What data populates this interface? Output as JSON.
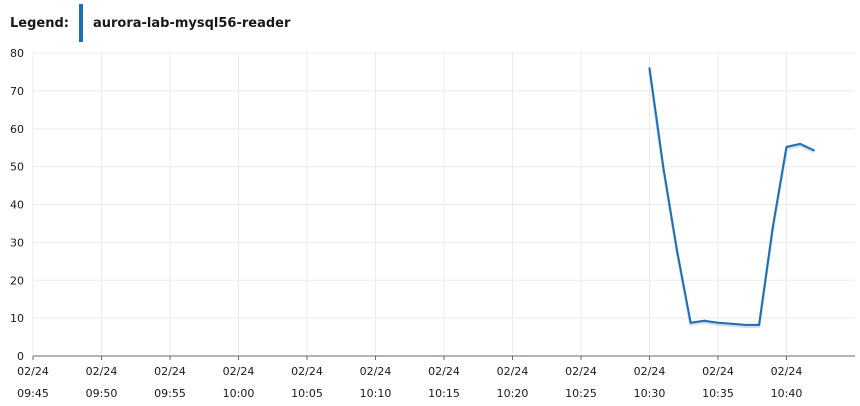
{
  "legend": {
    "title": "Legend:",
    "items": [
      {
        "label": "aurora-lab-mysql56-reader",
        "color": "#1f6fb0"
      }
    ]
  },
  "colors": {
    "grid": "#e9ebed",
    "axis": "#5f6b7a",
    "series": "#1f6fb0",
    "text": "#16191f"
  },
  "chart_data": {
    "type": "line",
    "title": "",
    "xlabel": "",
    "ylabel": "",
    "ylim": [
      0,
      80
    ],
    "y_ticks": [
      0,
      10,
      20,
      30,
      40,
      50,
      60,
      70,
      80
    ],
    "grid": true,
    "legend_position": "top-left",
    "x_ticks": [
      {
        "date": "02/24",
        "time": "09:45"
      },
      {
        "date": "02/24",
        "time": "09:50"
      },
      {
        "date": "02/24",
        "time": "09:55"
      },
      {
        "date": "02/24",
        "time": "10:00"
      },
      {
        "date": "02/24",
        "time": "10:05"
      },
      {
        "date": "02/24",
        "time": "10:10"
      },
      {
        "date": "02/24",
        "time": "10:15"
      },
      {
        "date": "02/24",
        "time": "10:20"
      },
      {
        "date": "02/24",
        "time": "10:25"
      },
      {
        "date": "02/24",
        "time": "10:30"
      },
      {
        "date": "02/24",
        "time": "10:35"
      },
      {
        "date": "02/24",
        "time": "10:40"
      }
    ],
    "x_range": [
      "09:45",
      "10:45"
    ],
    "series": [
      {
        "name": "aurora-lab-mysql56-reader",
        "color": "#1f6fb0",
        "points": [
          {
            "x": "10:30",
            "y": 76
          },
          {
            "x": "10:31",
            "y": 50
          },
          {
            "x": "10:32",
            "y": 28
          },
          {
            "x": "10:33",
            "y": 8.8
          },
          {
            "x": "10:34",
            "y": 9.3
          },
          {
            "x": "10:35",
            "y": 8.8
          },
          {
            "x": "10:36",
            "y": 8.5
          },
          {
            "x": "10:37",
            "y": 8.2
          },
          {
            "x": "10:38",
            "y": 8.2
          },
          {
            "x": "10:39",
            "y": 34
          },
          {
            "x": "10:40",
            "y": 55.2
          },
          {
            "x": "10:41",
            "y": 56
          },
          {
            "x": "10:42",
            "y": 54.3
          }
        ]
      }
    ]
  }
}
